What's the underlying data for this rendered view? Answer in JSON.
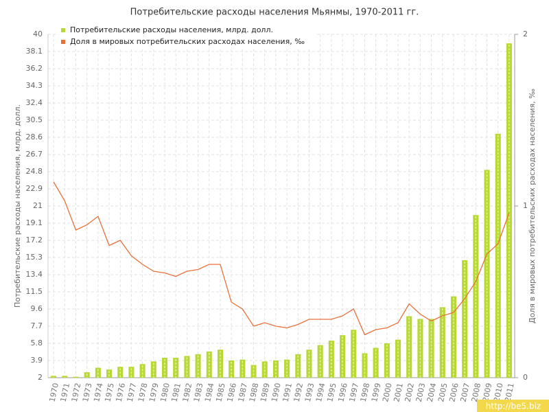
{
  "chart_data": {
    "type": "bar-line",
    "title": "Потребительские расходы населения Мьянмы, 1970-2011 гг.",
    "y_label": "Потребительские расходы населения, млрд. долл.",
    "y2_label": "Доля в мировых потребительских расходах населения, ‰",
    "watermark": "http://be5.biz",
    "categories": [
      "1970",
      "1971",
      "1972",
      "1973",
      "1974",
      "1975",
      "1976",
      "1977",
      "1978",
      "1979",
      "1980",
      "1981",
      "1982",
      "1983",
      "1984",
      "1985",
      "1986",
      "1987",
      "1988",
      "1989",
      "1990",
      "1991",
      "1992",
      "1993",
      "1994",
      "1995",
      "1996",
      "1997",
      "1998",
      "1999",
      "2000",
      "2001",
      "2002",
      "2003",
      "2004",
      "2005",
      "2006",
      "2007",
      "2008",
      "2009",
      "2010",
      "2011"
    ],
    "series": [
      {
        "name": "Потребительские расходы населения, млрд. долл.",
        "color": "#b8d935",
        "kind": "bar",
        "values": [
          2.2,
          2.2,
          2.1,
          2.6,
          3.1,
          2.9,
          3.2,
          3.2,
          3.5,
          3.8,
          4.2,
          4.2,
          4.4,
          4.6,
          4.9,
          5.1,
          3.9,
          4.0,
          3.4,
          3.8,
          3.9,
          4.0,
          4.6,
          5.1,
          5.6,
          6.1,
          6.7,
          7.3,
          4.7,
          5.3,
          5.8,
          6.2,
          8.8,
          8.5,
          8.5,
          9.8,
          11.0,
          15.0,
          20.0,
          25.0,
          29.0,
          39.0
        ]
      },
      {
        "name": "Доля в мировых потребительских расходах населения, ‰",
        "color": "#e8703a",
        "kind": "line",
        "axis": "y2",
        "values": [
          1.14,
          1.03,
          0.86,
          0.89,
          0.94,
          0.77,
          0.8,
          0.71,
          0.66,
          0.62,
          0.61,
          0.59,
          0.62,
          0.63,
          0.66,
          0.66,
          0.44,
          0.4,
          0.3,
          0.32,
          0.3,
          0.29,
          0.31,
          0.34,
          0.34,
          0.34,
          0.36,
          0.4,
          0.25,
          0.28,
          0.29,
          0.32,
          0.43,
          0.37,
          0.33,
          0.36,
          0.38,
          0.46,
          0.56,
          0.72,
          0.78,
          0.96
        ]
      }
    ],
    "ylim": [
      2,
      40
    ],
    "yticks": [
      2,
      3.9,
      5.8,
      7.7,
      9.6,
      11.5,
      13.4,
      15.3,
      17.2,
      19.1,
      21,
      22.9,
      24.8,
      26.7,
      28.6,
      30.5,
      32.4,
      34.3,
      36.2,
      38.1,
      40
    ],
    "y2lim": [
      0,
      2
    ],
    "y2ticks": [
      0,
      1,
      2
    ],
    "grid": true,
    "legend": "top-left"
  }
}
